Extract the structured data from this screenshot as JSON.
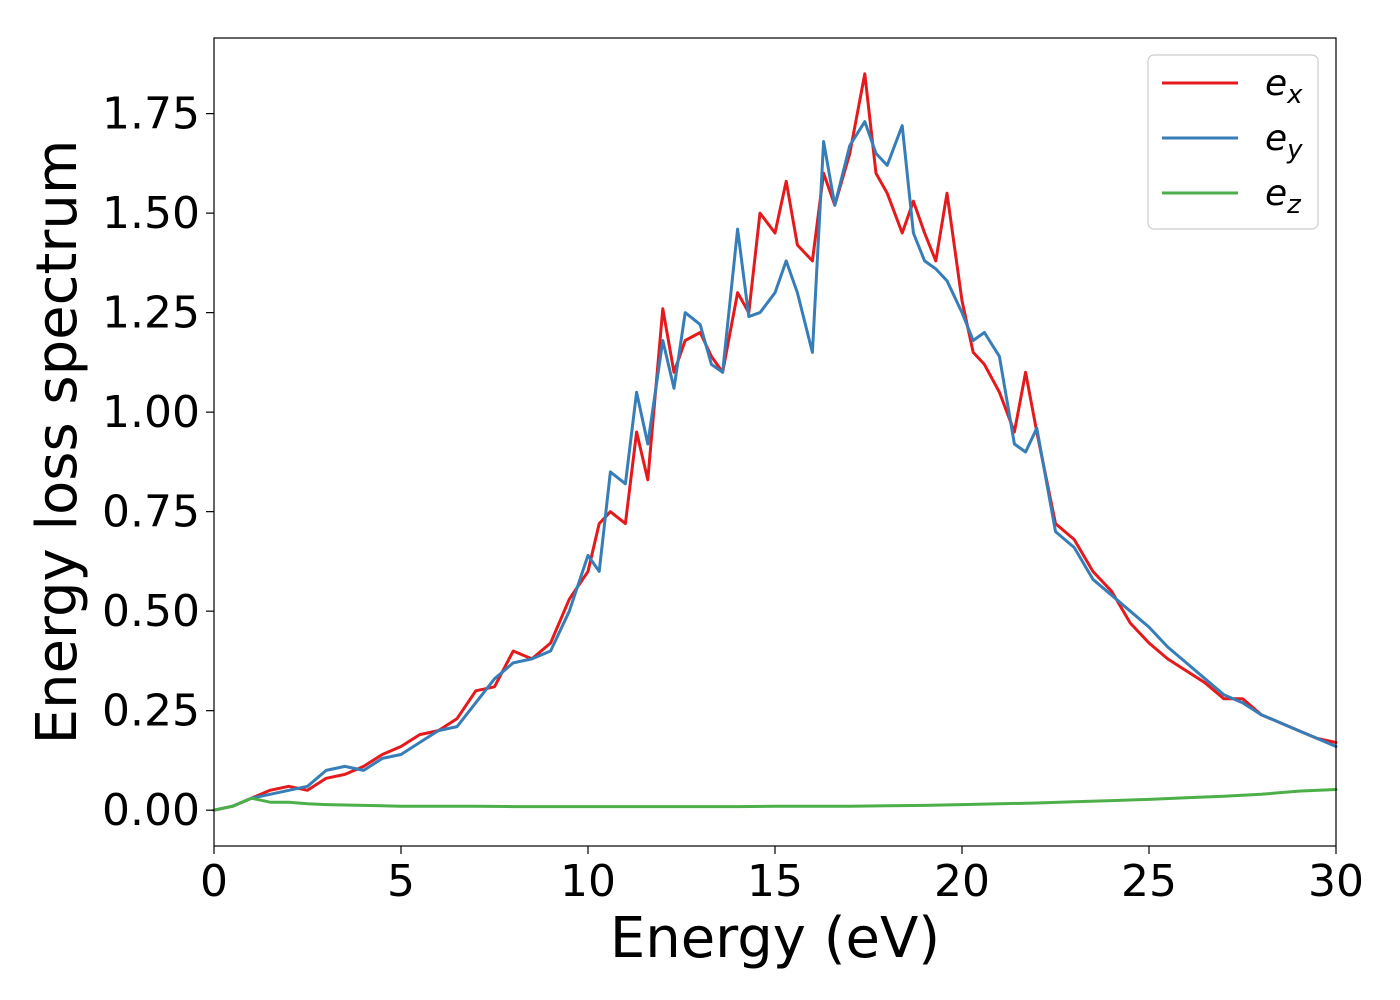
{
  "chart_data": {
    "type": "line",
    "xlabel": "Energy (eV)",
    "ylabel": "Energy loss spectrum",
    "xlim": [
      0,
      30
    ],
    "ylim": [
      -0.09,
      1.94
    ],
    "xticks": [
      0,
      5,
      10,
      15,
      20,
      25,
      30
    ],
    "xtick_labels": [
      "0",
      "5",
      "10",
      "15",
      "20",
      "25",
      "30"
    ],
    "yticks": [
      0,
      0.25,
      0.5,
      0.75,
      1.0,
      1.25,
      1.5,
      1.75
    ],
    "ytick_labels": [
      "0.00",
      "0.25",
      "0.50",
      "0.75",
      "1.00",
      "1.25",
      "1.50",
      "1.75"
    ],
    "grid": false,
    "legend_position": "top-right",
    "series": [
      {
        "name": "e_x",
        "label_base": "e",
        "label_sub": "x",
        "color": "#e41a1c",
        "x": [
          0,
          0.5,
          1,
          1.5,
          2,
          2.5,
          3,
          3.5,
          4,
          4.5,
          5,
          5.5,
          6,
          6.5,
          7,
          7.5,
          8,
          8.5,
          9,
          9.5,
          10,
          10.3,
          10.6,
          11,
          11.3,
          11.6,
          12,
          12.3,
          12.6,
          13,
          13.3,
          13.6,
          14,
          14.3,
          14.6,
          15,
          15.3,
          15.6,
          16,
          16.3,
          16.6,
          17,
          17.4,
          17.7,
          18,
          18.4,
          18.7,
          19,
          19.3,
          19.6,
          20,
          20.3,
          20.6,
          21,
          21.4,
          21.7,
          22,
          22.5,
          23,
          23.5,
          24,
          24.5,
          25,
          25.5,
          26,
          26.5,
          27,
          27.5,
          28,
          28.5,
          29,
          29.5,
          30
        ],
        "values": [
          0,
          0.01,
          0.03,
          0.05,
          0.06,
          0.05,
          0.08,
          0.09,
          0.11,
          0.14,
          0.16,
          0.19,
          0.2,
          0.23,
          0.3,
          0.31,
          0.4,
          0.38,
          0.42,
          0.53,
          0.6,
          0.72,
          0.75,
          0.72,
          0.95,
          0.83,
          1.26,
          1.1,
          1.18,
          1.2,
          1.14,
          1.1,
          1.3,
          1.25,
          1.5,
          1.45,
          1.58,
          1.42,
          1.38,
          1.6,
          1.52,
          1.65,
          1.85,
          1.6,
          1.55,
          1.45,
          1.53,
          1.45,
          1.38,
          1.55,
          1.28,
          1.15,
          1.12,
          1.05,
          0.95,
          1.1,
          0.95,
          0.72,
          0.68,
          0.6,
          0.55,
          0.47,
          0.42,
          0.38,
          0.35,
          0.32,
          0.28,
          0.28,
          0.24,
          0.22,
          0.2,
          0.18,
          0.17
        ]
      },
      {
        "name": "e_y",
        "label_base": "e",
        "label_sub": "y",
        "color": "#377eb8",
        "x": [
          0,
          0.5,
          1,
          1.5,
          2,
          2.5,
          3,
          3.5,
          4,
          4.5,
          5,
          5.5,
          6,
          6.5,
          7,
          7.5,
          8,
          8.5,
          9,
          9.5,
          10,
          10.3,
          10.6,
          11,
          11.3,
          11.6,
          12,
          12.3,
          12.6,
          13,
          13.3,
          13.6,
          14,
          14.3,
          14.6,
          15,
          15.3,
          15.6,
          16,
          16.3,
          16.6,
          17,
          17.4,
          17.7,
          18,
          18.4,
          18.7,
          19,
          19.3,
          19.6,
          20,
          20.3,
          20.6,
          21,
          21.4,
          21.7,
          22,
          22.5,
          23,
          23.5,
          24,
          24.5,
          25,
          25.5,
          26,
          26.5,
          27,
          27.5,
          28,
          28.5,
          29,
          29.5,
          30
        ],
        "values": [
          0,
          0.01,
          0.03,
          0.04,
          0.05,
          0.06,
          0.1,
          0.11,
          0.1,
          0.13,
          0.14,
          0.17,
          0.2,
          0.21,
          0.27,
          0.33,
          0.37,
          0.38,
          0.4,
          0.5,
          0.64,
          0.6,
          0.85,
          0.82,
          1.05,
          0.92,
          1.18,
          1.06,
          1.25,
          1.22,
          1.12,
          1.1,
          1.46,
          1.24,
          1.25,
          1.3,
          1.38,
          1.3,
          1.15,
          1.68,
          1.52,
          1.67,
          1.73,
          1.65,
          1.62,
          1.72,
          1.45,
          1.38,
          1.36,
          1.33,
          1.25,
          1.18,
          1.2,
          1.14,
          0.92,
          0.9,
          0.96,
          0.7,
          0.66,
          0.58,
          0.54,
          0.5,
          0.46,
          0.41,
          0.37,
          0.33,
          0.29,
          0.27,
          0.24,
          0.22,
          0.2,
          0.18,
          0.16
        ]
      },
      {
        "name": "e_z",
        "label_base": "e",
        "label_sub": "z",
        "color": "#4daf4a",
        "x": [
          0,
          0.5,
          1,
          1.5,
          2,
          2.5,
          3,
          4,
          5,
          6,
          7,
          8,
          9,
          10,
          11,
          12,
          13,
          14,
          15,
          16,
          17,
          18,
          19,
          20,
          21,
          22,
          23,
          24,
          25,
          26,
          27,
          28,
          29,
          30
        ],
        "values": [
          0,
          0.01,
          0.03,
          0.02,
          0.02,
          0.016,
          0.014,
          0.012,
          0.01,
          0.01,
          0.01,
          0.009,
          0.009,
          0.009,
          0.009,
          0.009,
          0.009,
          0.009,
          0.01,
          0.01,
          0.01,
          0.011,
          0.012,
          0.014,
          0.016,
          0.018,
          0.021,
          0.024,
          0.027,
          0.031,
          0.035,
          0.04,
          0.048,
          0.052
        ]
      }
    ]
  }
}
